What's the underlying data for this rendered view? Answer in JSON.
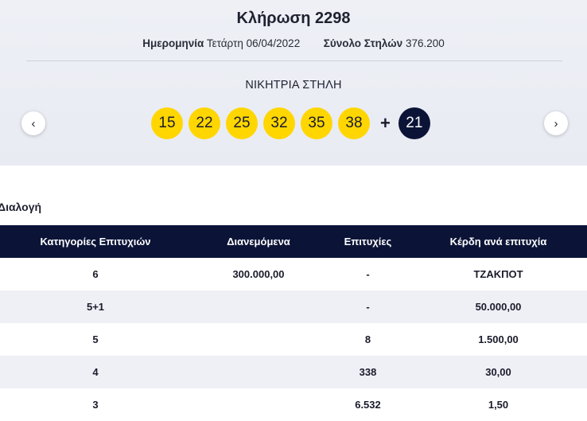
{
  "draw": {
    "title": "Κλήρωση 2298",
    "date_label": "Ημερομηνία",
    "date_value": "Τετάρτη 06/04/2022",
    "columns_label": "Σύνολο Στηλών",
    "columns_value": "376.200"
  },
  "winning": {
    "label": "ΝΙΚΗΤΡΙΑ ΣΤΗΛΗ",
    "numbers": [
      "15",
      "22",
      "25",
      "32",
      "35",
      "38"
    ],
    "plus": "+",
    "bonus": "21",
    "ball_color": "#ffd600",
    "bonus_color": "#0b1437"
  },
  "nav": {
    "prev_icon": "‹",
    "next_icon": "›"
  },
  "section": {
    "label": "Διαλογή"
  },
  "table": {
    "headers": [
      "Κατηγορίες Επιτυχιών",
      "Διανεμόμενα",
      "Επιτυχίες",
      "Κέρδη ανά επιτυχία"
    ],
    "rows": [
      [
        "6",
        "300.000,00",
        "-",
        "ΤΖΑΚΠΟΤ"
      ],
      [
        "5+1",
        "",
        "-",
        "50.000,00"
      ],
      [
        "5",
        "",
        "8",
        "1.500,00"
      ],
      [
        "4",
        "",
        "338",
        "30,00"
      ],
      [
        "3",
        "",
        "6.532",
        "1,50"
      ]
    ],
    "header_color": "#0b1437"
  }
}
